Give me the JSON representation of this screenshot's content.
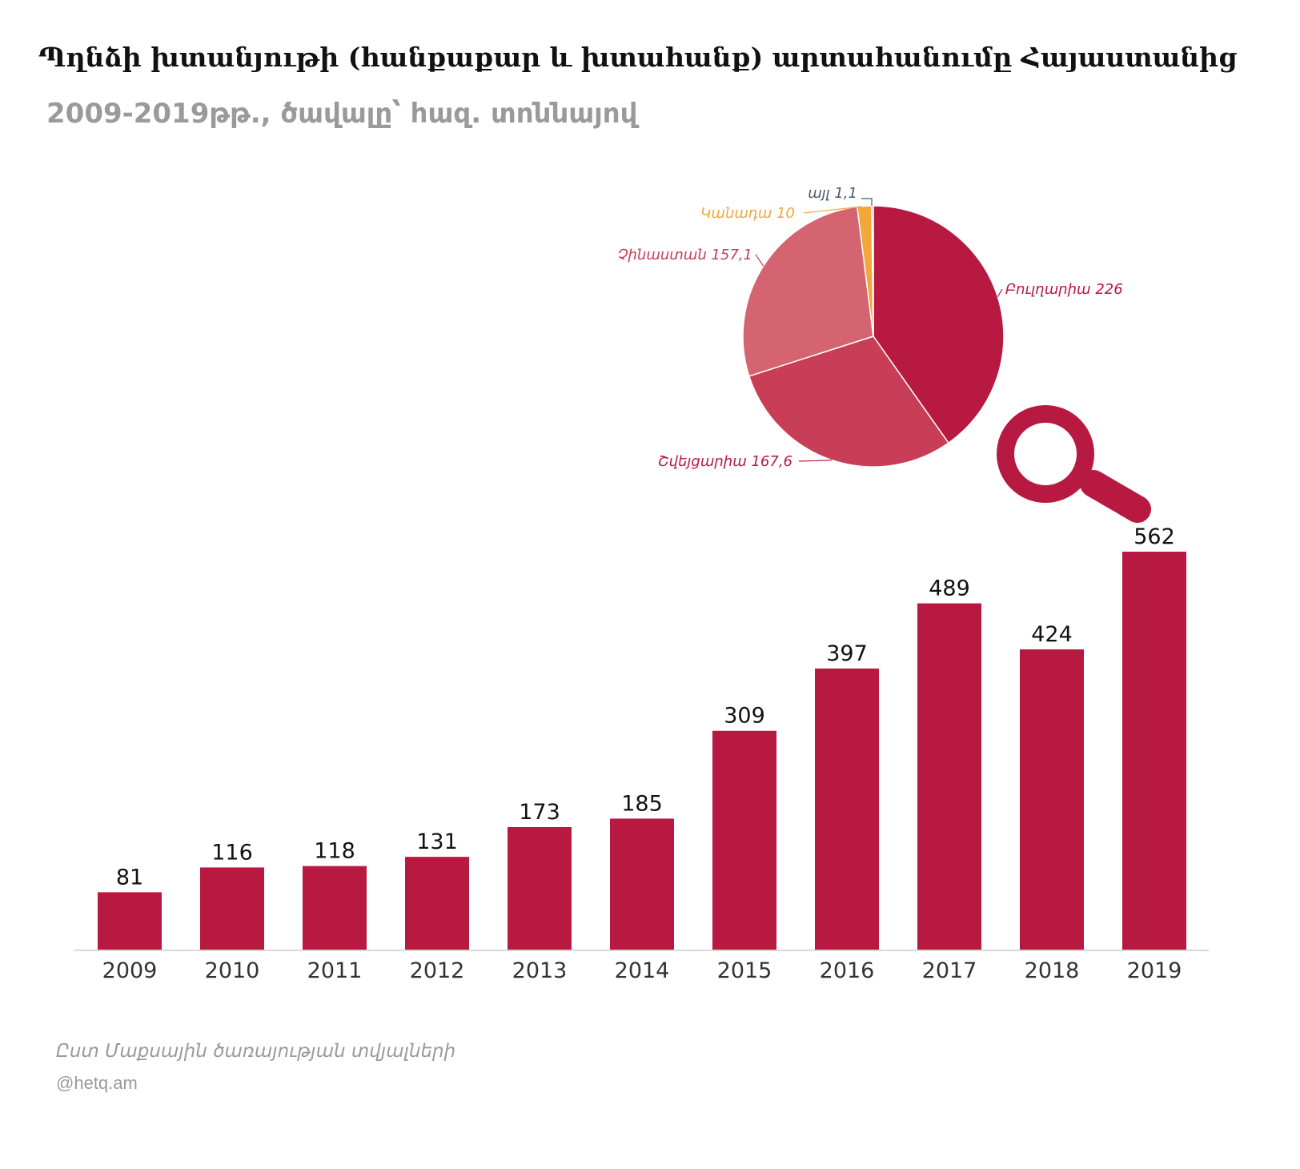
{
  "title": "Պղնձի խտանյութի (հանքաքար և խտահանք) արտահանումը Հայաստանից",
  "subtitle": {
    "years": "2009-2019թթ.,",
    "unit": "ծավալը՝ հազ. տոննայով"
  },
  "source": "Ըստ Մաքսային ծառայության տվյալների",
  "credit": "@hetq.am",
  "colors": {
    "bar": "#b71940",
    "axis": "#d9d9d9",
    "magnifier": "#b71940"
  },
  "icons": {
    "magnifier": "magnifier-icon"
  },
  "chart_data": [
    {
      "type": "bar",
      "categories": [
        "2009",
        "2010",
        "2011",
        "2012",
        "2013",
        "2014",
        "2015",
        "2016",
        "2017",
        "2018",
        "2019"
      ],
      "values": [
        81,
        116,
        118,
        131,
        173,
        185,
        309,
        397,
        489,
        424,
        562
      ],
      "data_labels": [
        "81",
        "116",
        "118",
        "131",
        "173",
        "185",
        "309",
        "397",
        "489",
        "424",
        "562"
      ],
      "grid": false,
      "legend": "none"
    },
    {
      "type": "pie",
      "labels": [
        "Բուլղարիա",
        "Շվեյցարիա",
        "Չինաստան",
        "Կանադա",
        "այլ"
      ],
      "values": [
        226,
        167.6,
        157.1,
        10,
        1.1
      ],
      "value_labels": [
        "226",
        "167,6",
        "157,1",
        "10",
        "1,1"
      ],
      "colors": [
        "#b71940",
        "#c83e56",
        "#d46470",
        "#f1a73a",
        "#5c6a82"
      ],
      "label_colors": [
        "#b71940",
        "#b71940",
        "#c83e56",
        "#f1a73a",
        "#4a5a72"
      ],
      "legend": "none"
    }
  ]
}
